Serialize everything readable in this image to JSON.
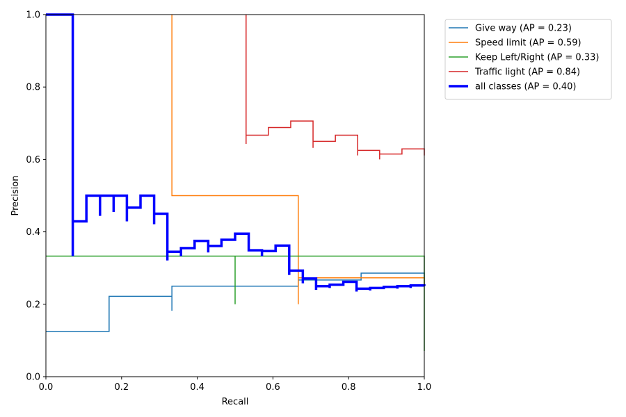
{
  "chart_data": {
    "type": "line",
    "xlabel": "Recall",
    "ylabel": "Precision",
    "xlim": [
      0,
      1
    ],
    "ylim": [
      0,
      1
    ],
    "grid": false,
    "legend_position": "outside-top-right",
    "xticks": [
      "0.0",
      "0.2",
      "0.4",
      "0.6",
      "0.8",
      "1.0"
    ],
    "yticks": [
      "0.0",
      "0.2",
      "0.4",
      "0.6",
      "0.8",
      "1.0"
    ],
    "series": [
      {
        "name": "Give way (AP = 0.23)",
        "color": "#1f77b4",
        "stroke": "thin",
        "x": [
          0,
          0.167,
          0.167,
          0.333,
          0.333,
          0.333,
          0.667,
          0.667,
          0.833,
          0.833,
          1.0,
          1.0
        ],
        "y": [
          0.125,
          0.125,
          0.222,
          0.222,
          0.182,
          0.25,
          0.25,
          0.267,
          0.267,
          0.286,
          0.286,
          0.25
        ]
      },
      {
        "name": "Speed limit (AP = 0.59)",
        "color": "#ff7f0e",
        "stroke": "thin",
        "x": [
          0.333,
          0.333,
          0.333,
          0.667,
          0.667,
          0.667,
          1.0,
          1.0
        ],
        "y": [
          1.0,
          0.5,
          0.5,
          0.5,
          0.2,
          0.273,
          0.273,
          0.25
        ]
      },
      {
        "name": "Keep Left/Right (AP = 0.33)",
        "color": "#2ca02c",
        "stroke": "thin",
        "x": [
          0,
          0.5,
          0.5,
          0.5,
          1.0,
          1.0
        ],
        "y": [
          0.333,
          0.333,
          0.2,
          0.333,
          0.333,
          0.071
        ]
      },
      {
        "name": "Traffic light (AP = 0.84)",
        "color": "#d62728",
        "stroke": "thin",
        "x": [
          0.529,
          0.529,
          0.529,
          0.588,
          0.588,
          0.647,
          0.647,
          0.706,
          0.706,
          0.706,
          0.765,
          0.765,
          0.824,
          0.824,
          0.824,
          0.882,
          0.882,
          0.882,
          0.941,
          0.941,
          1.0,
          1.0
        ],
        "y": [
          1.0,
          0.643,
          0.667,
          0.667,
          0.688,
          0.688,
          0.706,
          0.706,
          0.632,
          0.65,
          0.65,
          0.667,
          0.667,
          0.611,
          0.625,
          0.625,
          0.6,
          0.615,
          0.615,
          0.629,
          0.629,
          0.611
        ]
      },
      {
        "name": "all classes (AP = 0.40)",
        "color": "#0000ff",
        "stroke": "thick",
        "x": [
          0,
          0.071,
          0.071,
          0.071,
          0.107,
          0.107,
          0.143,
          0.143,
          0.143,
          0.179,
          0.179,
          0.179,
          0.214,
          0.214,
          0.214,
          0.25,
          0.25,
          0.286,
          0.286,
          0.286,
          0.321,
          0.321,
          0.321,
          0.357,
          0.357,
          0.357,
          0.393,
          0.393,
          0.429,
          0.429,
          0.429,
          0.464,
          0.464,
          0.5,
          0.5,
          0.536,
          0.536,
          0.571,
          0.571,
          0.571,
          0.607,
          0.607,
          0.643,
          0.643,
          0.643,
          0.679,
          0.679,
          0.679,
          0.714,
          0.714,
          0.714,
          0.75,
          0.75,
          0.75,
          0.786,
          0.786,
          0.821,
          0.821,
          0.821,
          0.857,
          0.857,
          0.857,
          0.893,
          0.893,
          0.929,
          0.929,
          0.929,
          0.964,
          0.964,
          0.964,
          1.0,
          1.0
        ],
        "y": [
          1.0,
          1.0,
          0.333,
          0.429,
          0.429,
          0.5,
          0.5,
          0.444,
          0.5,
          0.5,
          0.455,
          0.5,
          0.5,
          0.429,
          0.467,
          0.467,
          0.5,
          0.5,
          0.421,
          0.45,
          0.45,
          0.321,
          0.345,
          0.345,
          0.333,
          0.355,
          0.355,
          0.375,
          0.375,
          0.343,
          0.361,
          0.361,
          0.378,
          0.378,
          0.395,
          0.395,
          0.349,
          0.349,
          0.333,
          0.347,
          0.347,
          0.362,
          0.362,
          0.281,
          0.293,
          0.293,
          0.258,
          0.271,
          0.271,
          0.24,
          0.25,
          0.25,
          0.245,
          0.254,
          0.254,
          0.262,
          0.262,
          0.235,
          0.243,
          0.243,
          0.238,
          0.245,
          0.245,
          0.248,
          0.248,
          0.243,
          0.25,
          0.25,
          0.245,
          0.252,
          0.252,
          0.25
        ]
      }
    ]
  }
}
